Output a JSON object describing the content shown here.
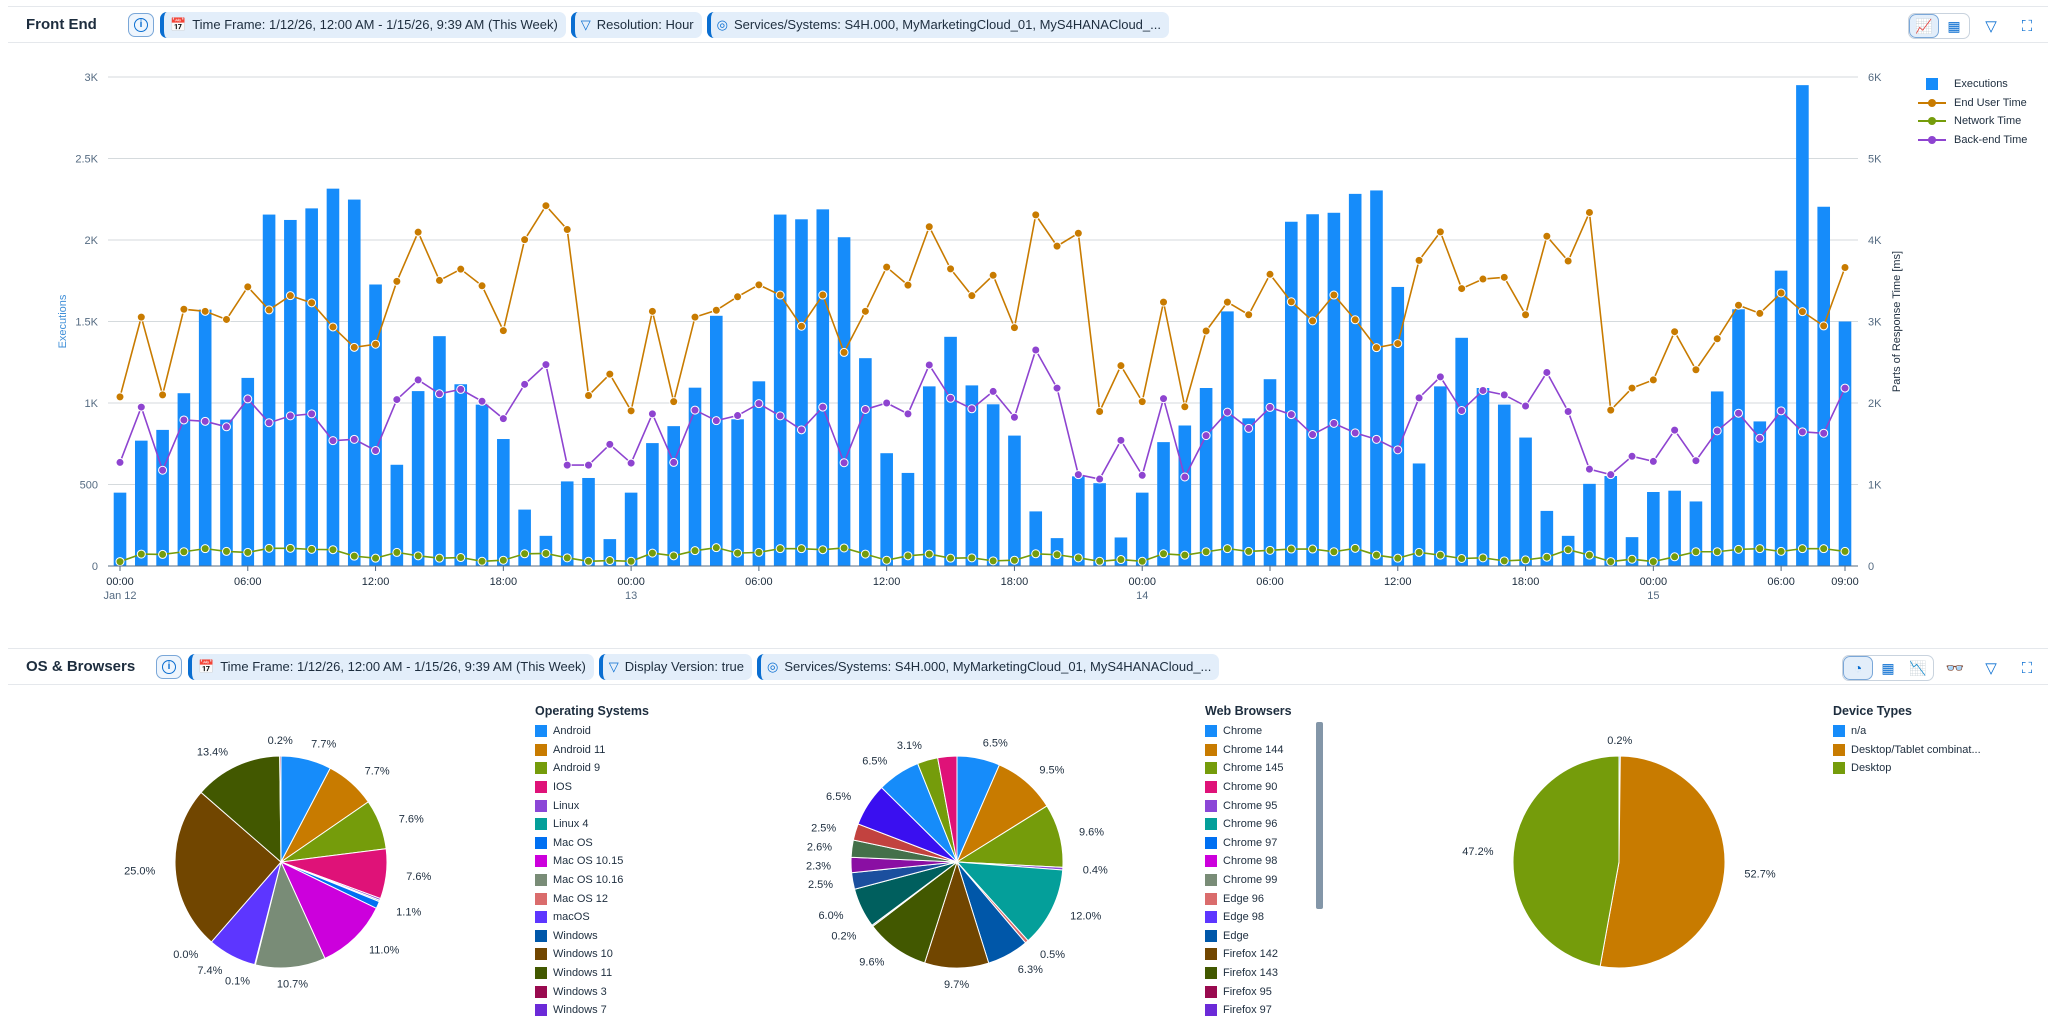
{
  "front_end": {
    "title": "Front End",
    "filters": [
      {
        "icon": "calendar-icon",
        "label": "Time Frame: 1/12/26, 12:00 AM - 1/15/26, 9:39 AM (This Week)"
      },
      {
        "icon": "filter-icon",
        "label": "Resolution: Hour"
      },
      {
        "icon": "target-icon",
        "label": "Services/Systems: S4H.000, MyMarketingCloud_01, MyS4HANACloud_..."
      }
    ],
    "toolbar": {
      "chart_view": "chart-icon",
      "table_view": "table-icon",
      "active": "chart_view",
      "filter": "filter-icon",
      "fullscreen": "fullscreen-icon"
    }
  },
  "os_browsers": {
    "title": "OS & Browsers",
    "filters": [
      {
        "icon": "calendar-icon",
        "label": "Time Frame: 1/12/26, 12:00 AM - 1/15/26, 9:39 AM (This Week)"
      },
      {
        "icon": "filter-icon",
        "label": "Display Version: true"
      },
      {
        "icon": "target-icon",
        "label": "Services/Systems: S4H.000, MyMarketingCloud_01, MyS4HANACloud_..."
      }
    ],
    "toolbar": {
      "pie_view": "pie-icon",
      "table_view": "table-icon",
      "line_view": "line-chart-icon",
      "active": "pie_view",
      "glasses": "glasses-icon",
      "filter": "filter-icon",
      "fullscreen": "fullscreen-icon"
    }
  },
  "chart_data": [
    {
      "type": "bar+line",
      "ylabel": "Executions",
      "y2label": "Parts of Response Time [ms]",
      "ylim": [
        0,
        3000
      ],
      "y2lim": [
        0,
        6000
      ],
      "yticks": [
        "0",
        "500",
        "1K",
        "1.5K",
        "2K",
        "2.5K",
        "3K"
      ],
      "y2ticks": [
        "0",
        "1K",
        "2K",
        "3K",
        "4K",
        "5K",
        "6K"
      ],
      "grid": true,
      "legend_placement": "right",
      "x_start": "2026-01-12 00:00",
      "x_step": "1 hour",
      "xticks": [
        {
          "hour": "2026-01-12 00:00",
          "label": "00:00",
          "sub": "Jan 12"
        },
        {
          "hour": "2026-01-12 06:00",
          "label": "06:00"
        },
        {
          "hour": "2026-01-12 12:00",
          "label": "12:00"
        },
        {
          "hour": "2026-01-12 18:00",
          "label": "18:00"
        },
        {
          "hour": "2026-01-13 00:00",
          "label": "00:00",
          "sub": "13"
        },
        {
          "hour": "2026-01-13 06:00",
          "label": "06:00"
        },
        {
          "hour": "2026-01-13 12:00",
          "label": "12:00"
        },
        {
          "hour": "2026-01-13 18:00",
          "label": "18:00"
        },
        {
          "hour": "2026-01-14 00:00",
          "label": "00:00",
          "sub": "14"
        },
        {
          "hour": "2026-01-14 06:00",
          "label": "06:00"
        },
        {
          "hour": "2026-01-14 12:00",
          "label": "12:00"
        },
        {
          "hour": "2026-01-14 18:00",
          "label": "18:00"
        },
        {
          "hour": "2026-01-15 00:00",
          "label": "00:00",
          "sub": "15"
        },
        {
          "hour": "2026-01-15 06:00",
          "label": "06:00"
        },
        {
          "hour": "2026-01-15 09:00",
          "label": "09:00"
        }
      ],
      "series": [
        {
          "name": "Executions",
          "kind": "bar",
          "axis": "left",
          "color": "#168cfa",
          "values": [
            450,
            769,
            835,
            1060,
            1573,
            898,
            1154,
            2156,
            2123,
            2194,
            2315,
            2248,
            1727,
            621,
            1073,
            1410,
            1115,
            990,
            779,
            346,
            185,
            519,
            540,
            165,
            450,
            754,
            858,
            1094,
            1535,
            900,
            1133,
            2156,
            2127,
            2188,
            2017,
            1275,
            692,
            571,
            1102,
            1406,
            1108,
            992,
            800,
            335,
            171,
            550,
            508,
            175,
            450,
            760,
            862,
            1092,
            1562,
            906,
            1146,
            2112,
            2158,
            2167,
            2283,
            2304,
            1712,
            629,
            1102,
            1400,
            1092,
            990,
            788,
            338,
            185,
            504,
            552,
            177,
            454,
            462,
            396,
            1071,
            1575,
            887,
            1812,
            2950,
            2204,
            1500
          ]
        },
        {
          "name": "End User Time",
          "kind": "line",
          "axis": "right",
          "color": "#c87b00",
          "values": [
            2075,
            3054,
            2100,
            3150,
            3125,
            3025,
            3425,
            3142,
            3317,
            3229,
            2933,
            2683,
            2721,
            3492,
            4096,
            3504,
            3642,
            3438,
            2888,
            4004,
            4421,
            4129,
            2092,
            2354,
            1904,
            3125,
            2017,
            3054,
            3138,
            3304,
            3450,
            3325,
            2942,
            3325,
            2621,
            3125,
            3667,
            3446,
            4163,
            3646,
            3317,
            3567,
            2925,
            4308,
            3925,
            4083,
            1896,
            2458,
            2017,
            3238,
            1954,
            2883,
            3238,
            3083,
            3579,
            3242,
            3008,
            3325,
            3021,
            2679,
            2729,
            3750,
            4100,
            3404,
            3521,
            3542,
            3083,
            4046,
            3742,
            4338,
            1913,
            2183,
            2283,
            2875,
            2408,
            2788,
            3200,
            3100,
            3350,
            3121,
            2946,
            3663
          ]
        },
        {
          "name": "Network Time",
          "kind": "line",
          "axis": "right",
          "color": "#759c0b",
          "values": [
            54,
            146,
            142,
            175,
            213,
            179,
            167,
            217,
            217,
            204,
            200,
            121,
            96,
            167,
            125,
            96,
            104,
            58,
            71,
            150,
            154,
            100,
            58,
            67,
            58,
            158,
            125,
            188,
            225,
            158,
            167,
            213,
            213,
            200,
            221,
            146,
            71,
            125,
            146,
            96,
            100,
            63,
            71,
            150,
            138,
            100,
            58,
            79,
            58,
            150,
            133,
            175,
            213,
            179,
            192,
            208,
            208,
            175,
            217,
            133,
            96,
            167,
            133,
            92,
            100,
            63,
            75,
            108,
            200,
            133,
            54,
            83,
            54,
            113,
            175,
            175,
            204,
            213,
            179,
            213,
            213,
            179
          ]
        },
        {
          "name": "Back-end Time",
          "kind": "line",
          "axis": "right",
          "color": "#8e44d0",
          "values": [
            1271,
            1950,
            1175,
            1792,
            1775,
            1708,
            2050,
            1758,
            1842,
            1867,
            1538,
            1554,
            1417,
            2042,
            2283,
            2113,
            2167,
            2021,
            1808,
            2229,
            2471,
            1238,
            1238,
            1492,
            1263,
            1867,
            1271,
            1913,
            1783,
            1846,
            1992,
            1842,
            1671,
            1950,
            1267,
            1921,
            2000,
            1867,
            2467,
            2058,
            1929,
            2142,
            1825,
            2650,
            2183,
            1121,
            1067,
            1542,
            1113,
            2054,
            1092,
            1600,
            1888,
            1688,
            1946,
            1858,
            1613,
            1750,
            1633,
            1554,
            1425,
            2063,
            2321,
            1908,
            2154,
            2100,
            1963,
            2375,
            1896,
            1188,
            1121,
            1346,
            1283,
            1667,
            1292,
            1658,
            1875,
            1567,
            1904,
            1646,
            1629,
            2183
          ]
        }
      ]
    },
    {
      "type": "pie",
      "title": "Operating Systems",
      "legend": [
        {
          "name": "Android",
          "color": "#168cfa"
        },
        {
          "name": "Android 11",
          "color": "#c87b00"
        },
        {
          "name": "Android 9",
          "color": "#759c0b"
        },
        {
          "name": "IOS",
          "color": "#df1278"
        },
        {
          "name": "Linux",
          "color": "#8b47d7"
        },
        {
          "name": "Linux 4",
          "color": "#049f9a"
        },
        {
          "name": "Mac OS",
          "color": "#0070f2"
        },
        {
          "name": "Mac OS 10.15",
          "color": "#cc00dc"
        },
        {
          "name": "Mac OS 10.16",
          "color": "#798c77"
        },
        {
          "name": "Mac OS 12",
          "color": "#da6c6c"
        },
        {
          "name": "macOS",
          "color": "#5d36ff"
        },
        {
          "name": "Windows",
          "color": "#0057a9"
        },
        {
          "name": "Windows 10",
          "color": "#714600"
        },
        {
          "name": "Windows 11",
          "color": "#425800"
        },
        {
          "name": "Windows 3",
          "color": "#990a4f"
        },
        {
          "name": "Windows 7",
          "color": "#6b2ad8"
        }
      ],
      "slices": [
        {
          "name": "Android",
          "value": 7.7,
          "label": "7.7%"
        },
        {
          "name": "Android 11",
          "value": 7.7,
          "label": "7.7%"
        },
        {
          "name": "Android 9",
          "value": 7.6,
          "label": "7.6%"
        },
        {
          "name": "IOS",
          "value": 7.6,
          "label": "7.6%"
        },
        {
          "name": "Linux",
          "value": 0.3
        },
        {
          "name": "Linux 4",
          "value": 0.2
        },
        {
          "name": "Mac OS",
          "value": 1.1,
          "label": "1.1%"
        },
        {
          "name": "Mac OS 10.15",
          "value": 11.0,
          "label": "11.0%"
        },
        {
          "name": "Mac OS 10.16",
          "value": 10.7,
          "label": "10.7%"
        },
        {
          "name": "Mac OS 12",
          "value": 0.1,
          "label": "0.1%"
        },
        {
          "name": "macOS",
          "value": 7.4,
          "label": "7.4%"
        },
        {
          "name": "Windows",
          "value": 0.0,
          "label": "0.0%"
        },
        {
          "name": "Windows 10",
          "value": 25.0,
          "label": "25.0%"
        },
        {
          "name": "Windows 11",
          "value": 13.4,
          "label": "13.4%"
        },
        {
          "name": "Windows 3",
          "value": 0.2,
          "label": "0.2%"
        }
      ]
    },
    {
      "type": "pie",
      "title": "Web Browsers",
      "legend": [
        {
          "name": "Chrome",
          "color": "#168cfa"
        },
        {
          "name": "Chrome 144",
          "color": "#c87b00"
        },
        {
          "name": "Chrome 145",
          "color": "#759c0b"
        },
        {
          "name": "Chrome 90",
          "color": "#df1278"
        },
        {
          "name": "Chrome 95",
          "color": "#8b47d7"
        },
        {
          "name": "Chrome 96",
          "color": "#049f9a"
        },
        {
          "name": "Chrome 97",
          "color": "#0070f2"
        },
        {
          "name": "Chrome 98",
          "color": "#cc00dc"
        },
        {
          "name": "Chrome 99",
          "color": "#798c77"
        },
        {
          "name": "Edge 96",
          "color": "#da6c6c"
        },
        {
          "name": "Edge 98",
          "color": "#5d36ff"
        },
        {
          "name": "Edge",
          "color": "#0057a9"
        },
        {
          "name": "Firefox 142",
          "color": "#714600"
        },
        {
          "name": "Firefox 143",
          "color": "#425800"
        },
        {
          "name": "Firefox 95",
          "color": "#990a4f"
        },
        {
          "name": "Firefox 97",
          "color": "#6b2ad8"
        }
      ],
      "slices": [
        {
          "value": 6.5,
          "label": "6.5%",
          "color": "#168cfa"
        },
        {
          "value": 9.5,
          "label": "9.5%",
          "color": "#c87b00"
        },
        {
          "value": 9.6,
          "label": "9.6%",
          "color": "#759c0b"
        },
        {
          "value": 0.4,
          "label": "0.4%",
          "color": "#8b47d7"
        },
        {
          "value": 12.0,
          "label": "12.0%",
          "color": "#049f9a"
        },
        {
          "value": 0.5,
          "label": "0.5%",
          "color": "#da6c6c"
        },
        {
          "value": 6.3,
          "label": "6.3%",
          "color": "#0057a9"
        },
        {
          "value": 9.7,
          "label": "9.7%",
          "color": "#714600"
        },
        {
          "value": 9.6,
          "label": "9.6%",
          "color": "#425800"
        },
        {
          "value": 0.2,
          "label": "0.2%",
          "color": "#8fa2b5"
        },
        {
          "value": 6.0,
          "label": "6.0%",
          "color": "#005f5e"
        },
        {
          "value": 2.5,
          "label": "2.5%",
          "color": "#1b4f9e"
        },
        {
          "value": 2.3,
          "label": "2.3%",
          "color": "#8a0fa3"
        },
        {
          "value": 2.6,
          "label": "2.6%",
          "color": "#44704a"
        },
        {
          "value": 2.5,
          "label": "2.5%",
          "color": "#c2423f"
        },
        {
          "value": 6.5,
          "label": "6.5%",
          "color": "#3a0ff0"
        },
        {
          "value": 6.5,
          "label": "6.5%",
          "color": "#168cfa"
        },
        {
          "value": 3.1,
          "label": "3.1%",
          "color": "#759c0b"
        },
        {
          "value": 2.9,
          "color": "#df1278"
        }
      ]
    },
    {
      "type": "pie",
      "title": "Device Types",
      "legend": [
        {
          "name": "n/a",
          "color": "#168cfa"
        },
        {
          "name": "Desktop/Tablet combinat...",
          "color": "#c87b00"
        },
        {
          "name": "Desktop",
          "color": "#759c0b"
        }
      ],
      "slices": [
        {
          "name": "n/a",
          "value": 0.2,
          "label": "0.2%"
        },
        {
          "name": "Desktop/Tablet combinat...",
          "value": 52.7,
          "label": "52.7%"
        },
        {
          "name": "Desktop",
          "value": 47.2,
          "label": "47.2%"
        }
      ]
    }
  ]
}
